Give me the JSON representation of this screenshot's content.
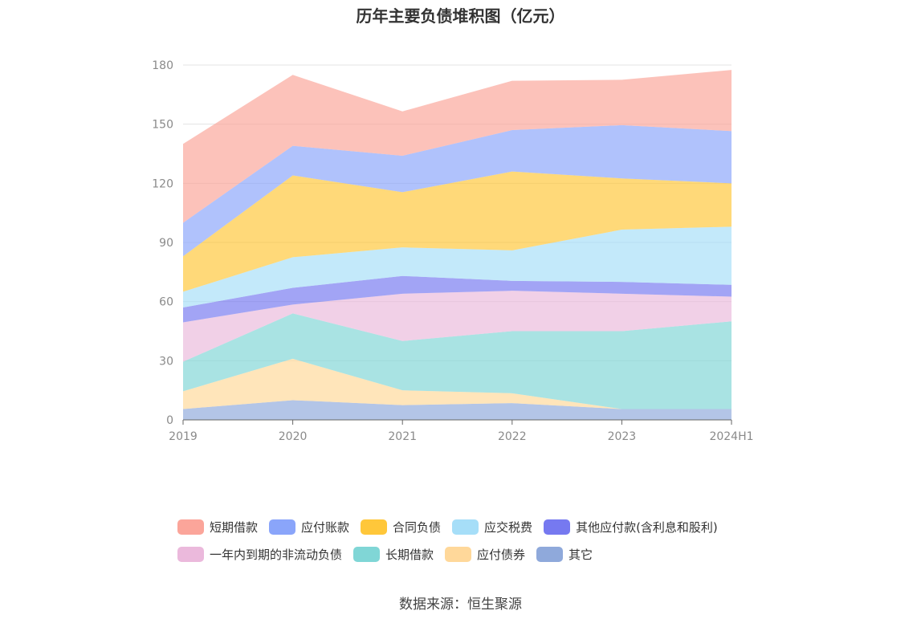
{
  "chart_data": {
    "type": "area",
    "stacked": true,
    "title": "历年主要负债堆积图（亿元）",
    "categories": [
      "2019",
      "2020",
      "2021",
      "2022",
      "2023",
      "2024H1"
    ],
    "ylim": [
      0,
      180
    ],
    "yticks": [
      "0",
      "30",
      "60",
      "90",
      "120",
      "150",
      "180"
    ],
    "grid": "horizontal",
    "legend_position": "bottom",
    "series": [
      {
        "name": "其它",
        "color": "#8fa9db",
        "values": [
          5.5,
          10,
          7.5,
          8.5,
          5.5,
          5.5
        ]
      },
      {
        "name": "应付债券",
        "color": "#ffd89a",
        "values": [
          9,
          21,
          7.5,
          5,
          0,
          0
        ]
      },
      {
        "name": "长期借款",
        "color": "#80d6d6",
        "values": [
          15,
          23,
          25,
          31.5,
          39.5,
          44.5
        ]
      },
      {
        "name": "一年内到期的非流动负债",
        "color": "#ebb9dc",
        "values": [
          20,
          4.5,
          24,
          20.5,
          19,
          12.5
        ]
      },
      {
        "name": "其他应付款(含利息和股利)",
        "color": "#7679f0",
        "values": [
          7.5,
          8.5,
          9,
          5,
          6,
          6
        ]
      },
      {
        "name": "应交税费",
        "color": "#a6def8",
        "values": [
          8,
          15.5,
          14.5,
          15.5,
          26.5,
          29.5
        ]
      },
      {
        "name": "合同负债",
        "color": "#ffc73a",
        "values": [
          18,
          41.5,
          28,
          40,
          26,
          22
        ]
      },
      {
        "name": "应付账款",
        "color": "#8aa5fa",
        "values": [
          17,
          15,
          18.5,
          21,
          27,
          26.5
        ]
      },
      {
        "name": "短期借款",
        "color": "#fba59a",
        "values": [
          40,
          36,
          22.5,
          25,
          23,
          31
        ]
      }
    ]
  },
  "legend": {
    "rows": [
      [
        {
          "label": "短期借款",
          "color": "#fba59a"
        },
        {
          "label": "应付账款",
          "color": "#8aa5fa"
        },
        {
          "label": "合同负债",
          "color": "#ffc73a"
        },
        {
          "label": "应交税费",
          "color": "#a6def8"
        },
        {
          "label": "其他应付款(含利息和股利)",
          "color": "#7679f0"
        }
      ],
      [
        {
          "label": "一年内到期的非流动负债",
          "color": "#ebb9dc"
        },
        {
          "label": "长期借款",
          "color": "#80d6d6"
        },
        {
          "label": "应付债券",
          "color": "#ffd89a"
        },
        {
          "label": "其它",
          "color": "#8fa9db"
        }
      ]
    ]
  },
  "source": "数据来源：恒生聚源"
}
